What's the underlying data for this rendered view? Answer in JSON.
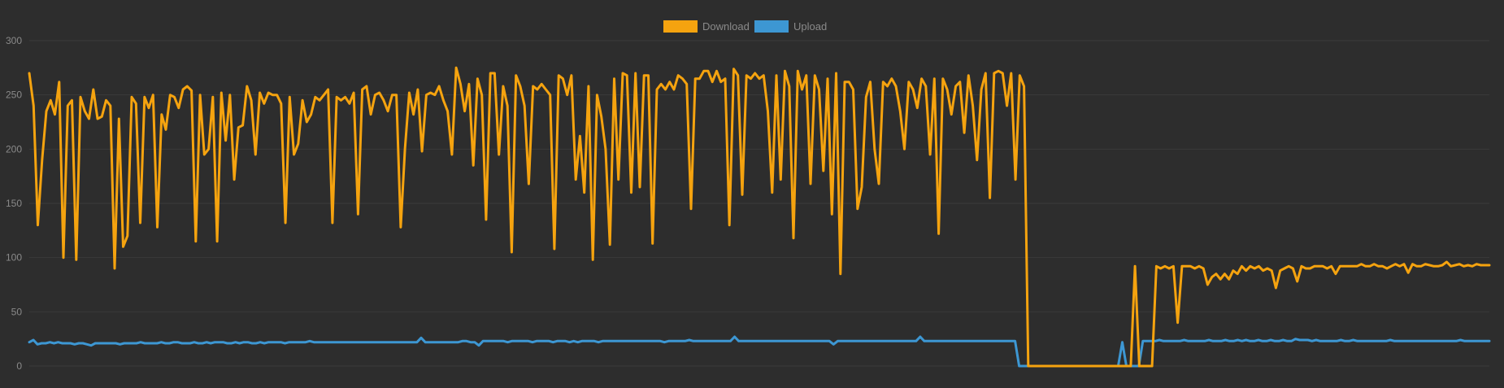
{
  "chart_data": {
    "type": "line",
    "title": "",
    "xlabel": "",
    "ylabel": "",
    "ylim": [
      0,
      300
    ],
    "yticks": [
      0,
      50,
      100,
      150,
      200,
      250,
      300
    ],
    "grid": true,
    "legend_position": "top-center",
    "series": [
      {
        "name": "Download",
        "color": "#f5a30f",
        "values": [
          270,
          240,
          130,
          190,
          235,
          245,
          232,
          262,
          100,
          240,
          245,
          98,
          248,
          235,
          228,
          255,
          228,
          230,
          245,
          240,
          90,
          228,
          110,
          120,
          248,
          242,
          132,
          248,
          238,
          250,
          128,
          232,
          218,
          250,
          248,
          238,
          255,
          258,
          254,
          115,
          250,
          195,
          200,
          248,
          115,
          252,
          208,
          250,
          172,
          220,
          222,
          258,
          245,
          195,
          252,
          242,
          252,
          250,
          250,
          242,
          132,
          248,
          195,
          205,
          245,
          225,
          232,
          248,
          245,
          250,
          255,
          132,
          248,
          245,
          248,
          242,
          252,
          140,
          255,
          258,
          232,
          250,
          252,
          245,
          235,
          250,
          250,
          128,
          200,
          252,
          232,
          255,
          198,
          250,
          252,
          250,
          258,
          245,
          235,
          195,
          275,
          260,
          235,
          260,
          185,
          265,
          250,
          135,
          270,
          270,
          195,
          258,
          240,
          105,
          268,
          258,
          240,
          168,
          258,
          255,
          260,
          255,
          250,
          108,
          268,
          265,
          250,
          268,
          172,
          212,
          160,
          258,
          98,
          250,
          230,
          200,
          112,
          265,
          172,
          270,
          268,
          160,
          270,
          165,
          268,
          268,
          113,
          255,
          260,
          255,
          262,
          255,
          268,
          265,
          260,
          145,
          265,
          265,
          272,
          272,
          262,
          272,
          262,
          265,
          130,
          274,
          268,
          158,
          268,
          265,
          270,
          265,
          268,
          235,
          160,
          268,
          172,
          272,
          258,
          118,
          272,
          255,
          268,
          168,
          268,
          255,
          180,
          265,
          140,
          270,
          85,
          262,
          262,
          255,
          145,
          165,
          248,
          262,
          200,
          168,
          262,
          258,
          265,
          258,
          235,
          200,
          262,
          255,
          238,
          265,
          258,
          195,
          265,
          122,
          265,
          255,
          232,
          258,
          262,
          215,
          268,
          240,
          190,
          255,
          270,
          155,
          270,
          272,
          270,
          240,
          270,
          172,
          268,
          258,
          0,
          0,
          0,
          0,
          0,
          0,
          0,
          0,
          0,
          0,
          0,
          0,
          0,
          0,
          0,
          0,
          0,
          0,
          0,
          0,
          0,
          0,
          0,
          0,
          0,
          92,
          0,
          0,
          0,
          0,
          92,
          90,
          92,
          90,
          92,
          40,
          92,
          92,
          92,
          90,
          92,
          90,
          75,
          82,
          85,
          80,
          85,
          80,
          88,
          85,
          92,
          88,
          92,
          90,
          92,
          88,
          90,
          88,
          72,
          88,
          90,
          92,
          90,
          78,
          92,
          90,
          90,
          92,
          92,
          92,
          90,
          92,
          85,
          92,
          92,
          92,
          92,
          92,
          94,
          92,
          92,
          94,
          92,
          92,
          90,
          92,
          94,
          92,
          94,
          86,
          94,
          92,
          92,
          94,
          93,
          92,
          92,
          93,
          96,
          92,
          93,
          94,
          92,
          93,
          92,
          94,
          93,
          93,
          93
        ]
      },
      {
        "name": "Upload",
        "color": "#3d97d3",
        "values": [
          22,
          24,
          20,
          21,
          21,
          22,
          21,
          22,
          21,
          21,
          21,
          20,
          21,
          21,
          20,
          19,
          21,
          21,
          21,
          21,
          21,
          21,
          20,
          21,
          21,
          21,
          21,
          22,
          21,
          21,
          21,
          21,
          22,
          21,
          21,
          22,
          22,
          21,
          21,
          21,
          22,
          21,
          21,
          22,
          21,
          22,
          22,
          22,
          21,
          21,
          22,
          21,
          22,
          22,
          21,
          21,
          22,
          21,
          22,
          22,
          22,
          22,
          21,
          22,
          22,
          22,
          22,
          22,
          23,
          22,
          22,
          22,
          22,
          22,
          22,
          22,
          22,
          22,
          22,
          22,
          22,
          22,
          22,
          22,
          22,
          22,
          22,
          22,
          22,
          22,
          22,
          22,
          22,
          22,
          22,
          26,
          22,
          22,
          22,
          22,
          22,
          22,
          22,
          22,
          22,
          23,
          23,
          22,
          22,
          19,
          23,
          23,
          23,
          23,
          23,
          23,
          22,
          23,
          23,
          23,
          23,
          23,
          22,
          23,
          23,
          23,
          23,
          22,
          23,
          23,
          23,
          22,
          23,
          22,
          23,
          23,
          23,
          23,
          22,
          23,
          23,
          23,
          23,
          23,
          23,
          23,
          23,
          23,
          23,
          23,
          23,
          23,
          23,
          23,
          22,
          23,
          23,
          23,
          23,
          23,
          24,
          23,
          23,
          23,
          23,
          23,
          23,
          23,
          23,
          23,
          23,
          27,
          23,
          23,
          23,
          23,
          23,
          23,
          23,
          23,
          23,
          23,
          23,
          23,
          23,
          23,
          23,
          23,
          23,
          23,
          23,
          23,
          23,
          23,
          23,
          20,
          23,
          23,
          23,
          23,
          23,
          23,
          23,
          23,
          23,
          23,
          23,
          23,
          23,
          23,
          23,
          23,
          23,
          23,
          23,
          23,
          27,
          23,
          23,
          23,
          23,
          23,
          23,
          23,
          23,
          23,
          23,
          23,
          23,
          23,
          23,
          23,
          23,
          23,
          23,
          23,
          23,
          23,
          23,
          23,
          0,
          0,
          0,
          0,
          0,
          0,
          0,
          0,
          0,
          0,
          0,
          0,
          0,
          0,
          0,
          0,
          0,
          0,
          0,
          0,
          0,
          0,
          0,
          0,
          0,
          22,
          0,
          0,
          0,
          0,
          23,
          23,
          23,
          23,
          24,
          23,
          23,
          23,
          23,
          23,
          24,
          23,
          23,
          23,
          23,
          23,
          24,
          23,
          23,
          23,
          24,
          23,
          23,
          24,
          23,
          24,
          23,
          23,
          24,
          23,
          23,
          24,
          23,
          23,
          24,
          23,
          23,
          25,
          24,
          24,
          24,
          23,
          24,
          23,
          23,
          23,
          23,
          23,
          24,
          23,
          23,
          24,
          23,
          23,
          23,
          23,
          23,
          23,
          23,
          23,
          24,
          23,
          23,
          23,
          23,
          23,
          23,
          23,
          23,
          23,
          23,
          23,
          23,
          23,
          23,
          23,
          23,
          24,
          23,
          23,
          23,
          23,
          23,
          23,
          23
        ]
      }
    ]
  }
}
